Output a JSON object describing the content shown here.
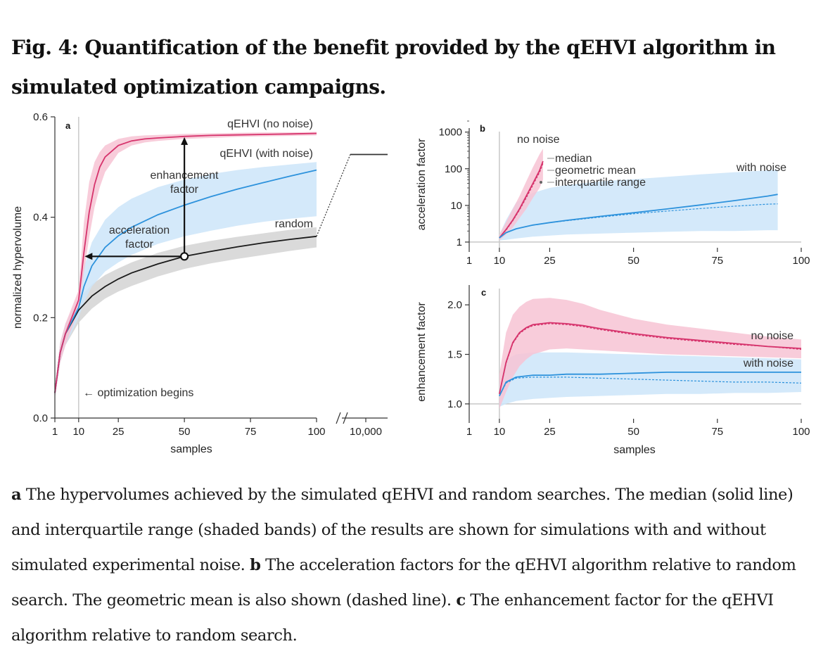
{
  "figure": {
    "title": "Fig. 4: Quantification of the benefit provided by the qEHVI algorithm in simulated optimization campaigns."
  },
  "caption": [
    {
      "bold": "a",
      "text": " The hypervolumes achieved by the simulated qEHVI and random searches. The median (solid line) and interquartile range (shaded bands) of the results are shown for simulations with and without simulated experimental noise. "
    },
    {
      "bold": "b",
      "text": " The acceleration factors for the qEHVI algorithm relative to random search. The geometric mean is also shown (dashed line). "
    },
    {
      "bold": "c",
      "text": " The enhancement factor for the qEHVI algorithm relative to random search."
    }
  ],
  "colors": {
    "no_noise": "#d6336c",
    "no_noise_band": "#f7c3d4",
    "with_noise": "#2d92dc",
    "with_noise_band": "#cde5f9",
    "random": "#1a1a1a",
    "random_band": "#d3d3d3",
    "ref_line": "#c8c8c8"
  },
  "chart_data": [
    {
      "panel": "a",
      "type": "line",
      "xlabel": "samples",
      "ylabel": "normalized hypervolume",
      "xlim": [
        1,
        100
      ],
      "ylim": [
        0,
        0.6
      ],
      "xticks": [
        1,
        10,
        25,
        50,
        75,
        100
      ],
      "xtick_labels": [
        "1",
        "10",
        "25",
        "50",
        "75",
        "100"
      ],
      "xbreak_tick": "10,000",
      "yticks": [
        0,
        0.2,
        0.4,
        0.6
      ],
      "ytick_labels": [
        "0.0",
        "0.2",
        "0.4",
        "0.6"
      ],
      "series": [
        {
          "name": "random",
          "label": "random",
          "color_key": "random",
          "band_key": "random_band",
          "x": [
            1,
            3,
            5,
            10,
            15,
            20,
            25,
            30,
            40,
            50,
            60,
            70,
            80,
            90,
            100
          ],
          "median": [
            0.05,
            0.13,
            0.168,
            0.215,
            0.243,
            0.262,
            0.277,
            0.289,
            0.307,
            0.322,
            0.332,
            0.341,
            0.349,
            0.356,
            0.362
          ],
          "q1": [
            0.04,
            0.11,
            0.145,
            0.19,
            0.218,
            0.238,
            0.252,
            0.263,
            0.282,
            0.297,
            0.308,
            0.317,
            0.325,
            0.333,
            0.34
          ],
          "q3": [
            0.06,
            0.15,
            0.188,
            0.238,
            0.266,
            0.285,
            0.298,
            0.31,
            0.329,
            0.343,
            0.353,
            0.361,
            0.368,
            0.375,
            0.38
          ],
          "break_value": 0.525
        },
        {
          "name": "qEHVI (with noise)",
          "label": "qEHVI (with noise)",
          "color_key": "with_noise",
          "band_key": "with_noise_band",
          "x": [
            1,
            3,
            5,
            10,
            12,
            15,
            20,
            25,
            30,
            40,
            50,
            60,
            70,
            80,
            90,
            100
          ],
          "median": [
            0.05,
            0.13,
            0.168,
            0.22,
            0.262,
            0.303,
            0.34,
            0.363,
            0.38,
            0.405,
            0.424,
            0.441,
            0.456,
            0.469,
            0.482,
            0.494
          ],
          "q1": [
            0.04,
            0.11,
            0.145,
            0.2,
            0.23,
            0.262,
            0.292,
            0.31,
            0.325,
            0.347,
            0.362,
            0.373,
            0.383,
            0.391,
            0.397,
            0.402
          ],
          "q3": [
            0.06,
            0.15,
            0.188,
            0.24,
            0.3,
            0.35,
            0.395,
            0.42,
            0.437,
            0.46,
            0.475,
            0.486,
            0.494,
            0.5,
            0.505,
            0.51
          ]
        },
        {
          "name": "qEHVI (no noise)",
          "label": "qEHVI (no noise)",
          "color_key": "no_noise",
          "band_key": "no_noise_band",
          "x": [
            1,
            3,
            5,
            10,
            12,
            14,
            16,
            18,
            20,
            25,
            30,
            35,
            40,
            50,
            60,
            70,
            80,
            90,
            100
          ],
          "median": [
            0.05,
            0.13,
            0.168,
            0.235,
            0.33,
            0.41,
            0.465,
            0.5,
            0.52,
            0.543,
            0.552,
            0.556,
            0.558,
            0.561,
            0.563,
            0.564,
            0.565,
            0.566,
            0.567
          ],
          "q1": [
            0.04,
            0.11,
            0.145,
            0.215,
            0.29,
            0.36,
            0.42,
            0.46,
            0.49,
            0.528,
            0.543,
            0.549,
            0.552,
            0.556,
            0.558,
            0.56,
            0.561,
            0.562,
            0.563
          ],
          "q3": [
            0.06,
            0.15,
            0.188,
            0.255,
            0.39,
            0.47,
            0.51,
            0.53,
            0.543,
            0.556,
            0.561,
            0.563,
            0.564,
            0.566,
            0.567,
            0.568,
            0.569,
            0.569,
            0.57
          ]
        }
      ],
      "annotations": {
        "enhancement": "enhancement factor",
        "acceleration": "acceleration factor",
        "optimization": "← optimization begins"
      },
      "marker": {
        "x": 50,
        "y": 0.322,
        "to_x": 12,
        "to_y": 0.561
      }
    },
    {
      "panel": "b",
      "type": "line",
      "yscale": "log",
      "ylabel": "acceleration factor",
      "xlim": [
        1,
        100
      ],
      "ylim": [
        0.7,
        2000
      ],
      "xticks": [
        1,
        10,
        25,
        50,
        75,
        100
      ],
      "xtick_labels": [
        "1",
        "10",
        "25",
        "50",
        "75",
        "100"
      ],
      "yticks": [
        1,
        10,
        100,
        1000
      ],
      "ytick_labels": [
        "1",
        "10",
        "100",
        "1000"
      ],
      "series": [
        {
          "name": "no noise",
          "color_key": "no_noise",
          "band_key": "no_noise_band",
          "x": [
            10,
            12,
            14,
            16,
            18,
            20,
            22,
            23
          ],
          "median": [
            1.3,
            2.2,
            4.0,
            8.0,
            18,
            40,
            90,
            160
          ],
          "geomean": [
            1.3,
            2.1,
            3.8,
            7.5,
            16,
            36,
            80,
            140
          ],
          "q1": [
            1.1,
            1.6,
            2.5,
            4.5,
            8,
            16,
            30,
            50
          ],
          "q3": [
            1.6,
            3.5,
            8,
            18,
            45,
            110,
            250,
            350
          ]
        },
        {
          "name": "with noise",
          "color_key": "with_noise",
          "band_key": "with_noise_band",
          "x": [
            10,
            12,
            15,
            20,
            25,
            30,
            40,
            50,
            60,
            70,
            80,
            90,
            93
          ],
          "median": [
            1.3,
            1.8,
            2.3,
            2.9,
            3.4,
            3.9,
            5.0,
            6.3,
            8.0,
            10.3,
            13.5,
            18,
            20
          ],
          "geomean": [
            1.3,
            1.8,
            2.3,
            2.9,
            3.4,
            3.8,
            4.8,
            5.9,
            7.0,
            8.2,
            9.5,
            10.8,
            11
          ],
          "q1": [
            1.1,
            1.15,
            1.25,
            1.4,
            1.5,
            1.6,
            1.7,
            1.8,
            1.9,
            2.0,
            2.0,
            2.1,
            2.1
          ],
          "q3": [
            1.6,
            4,
            12,
            22,
            30,
            36,
            45,
            52,
            60,
            70,
            80,
            90,
            95
          ]
        }
      ],
      "labels": {
        "no_noise": "no noise",
        "with_noise": "with noise"
      },
      "legend": [
        "median",
        "geometric mean",
        "interquartile range"
      ]
    },
    {
      "panel": "c",
      "type": "line",
      "xlabel": "samples",
      "ylabel": "enhancement factor",
      "xlim": [
        1,
        100
      ],
      "ylim": [
        0.85,
        2.2
      ],
      "xticks": [
        1,
        10,
        25,
        50,
        75,
        100
      ],
      "xtick_labels": [
        "1",
        "10",
        "25",
        "50",
        "75",
        "100"
      ],
      "yticks": [
        1.0,
        1.5,
        2.0
      ],
      "ytick_labels": [
        "1.0",
        "1.5",
        "2.0"
      ],
      "series": [
        {
          "name": "no noise",
          "color_key": "no_noise",
          "band_key": "no_noise_band",
          "x": [
            10,
            12,
            14,
            16,
            18,
            20,
            25,
            30,
            35,
            40,
            50,
            60,
            70,
            80,
            90,
            100
          ],
          "median": [
            1.1,
            1.42,
            1.62,
            1.72,
            1.77,
            1.8,
            1.82,
            1.81,
            1.79,
            1.76,
            1.71,
            1.67,
            1.64,
            1.61,
            1.58,
            1.56
          ],
          "geomean": [
            1.1,
            1.41,
            1.61,
            1.71,
            1.76,
            1.79,
            1.81,
            1.8,
            1.78,
            1.75,
            1.7,
            1.66,
            1.63,
            1.6,
            1.58,
            1.55
          ],
          "q1": [
            0.95,
            1.12,
            1.27,
            1.38,
            1.45,
            1.5,
            1.55,
            1.56,
            1.55,
            1.54,
            1.52,
            1.5,
            1.49,
            1.48,
            1.47,
            1.46
          ],
          "q3": [
            1.3,
            1.72,
            1.9,
            1.98,
            2.03,
            2.06,
            2.07,
            2.05,
            2.01,
            1.95,
            1.86,
            1.8,
            1.76,
            1.72,
            1.68,
            1.65
          ]
        },
        {
          "name": "with noise",
          "color_key": "with_noise",
          "band_key": "with_noise_band",
          "x": [
            10,
            12,
            15,
            20,
            25,
            30,
            40,
            50,
            60,
            70,
            80,
            90,
            100
          ],
          "median": [
            1.08,
            1.22,
            1.27,
            1.29,
            1.29,
            1.3,
            1.3,
            1.31,
            1.32,
            1.32,
            1.32,
            1.32,
            1.32
          ],
          "geomean": [
            1.08,
            1.21,
            1.26,
            1.27,
            1.27,
            1.27,
            1.26,
            1.25,
            1.24,
            1.23,
            1.22,
            1.22,
            1.21
          ],
          "q1": [
            0.97,
            1.0,
            1.03,
            1.05,
            1.06,
            1.07,
            1.08,
            1.09,
            1.1,
            1.1,
            1.11,
            1.11,
            1.12
          ],
          "q3": [
            1.2,
            1.45,
            1.5,
            1.52,
            1.52,
            1.52,
            1.51,
            1.5,
            1.49,
            1.48,
            1.47,
            1.46,
            1.45
          ]
        }
      ],
      "labels": {
        "no_noise": "no noise",
        "with_noise": "with noise"
      }
    }
  ]
}
